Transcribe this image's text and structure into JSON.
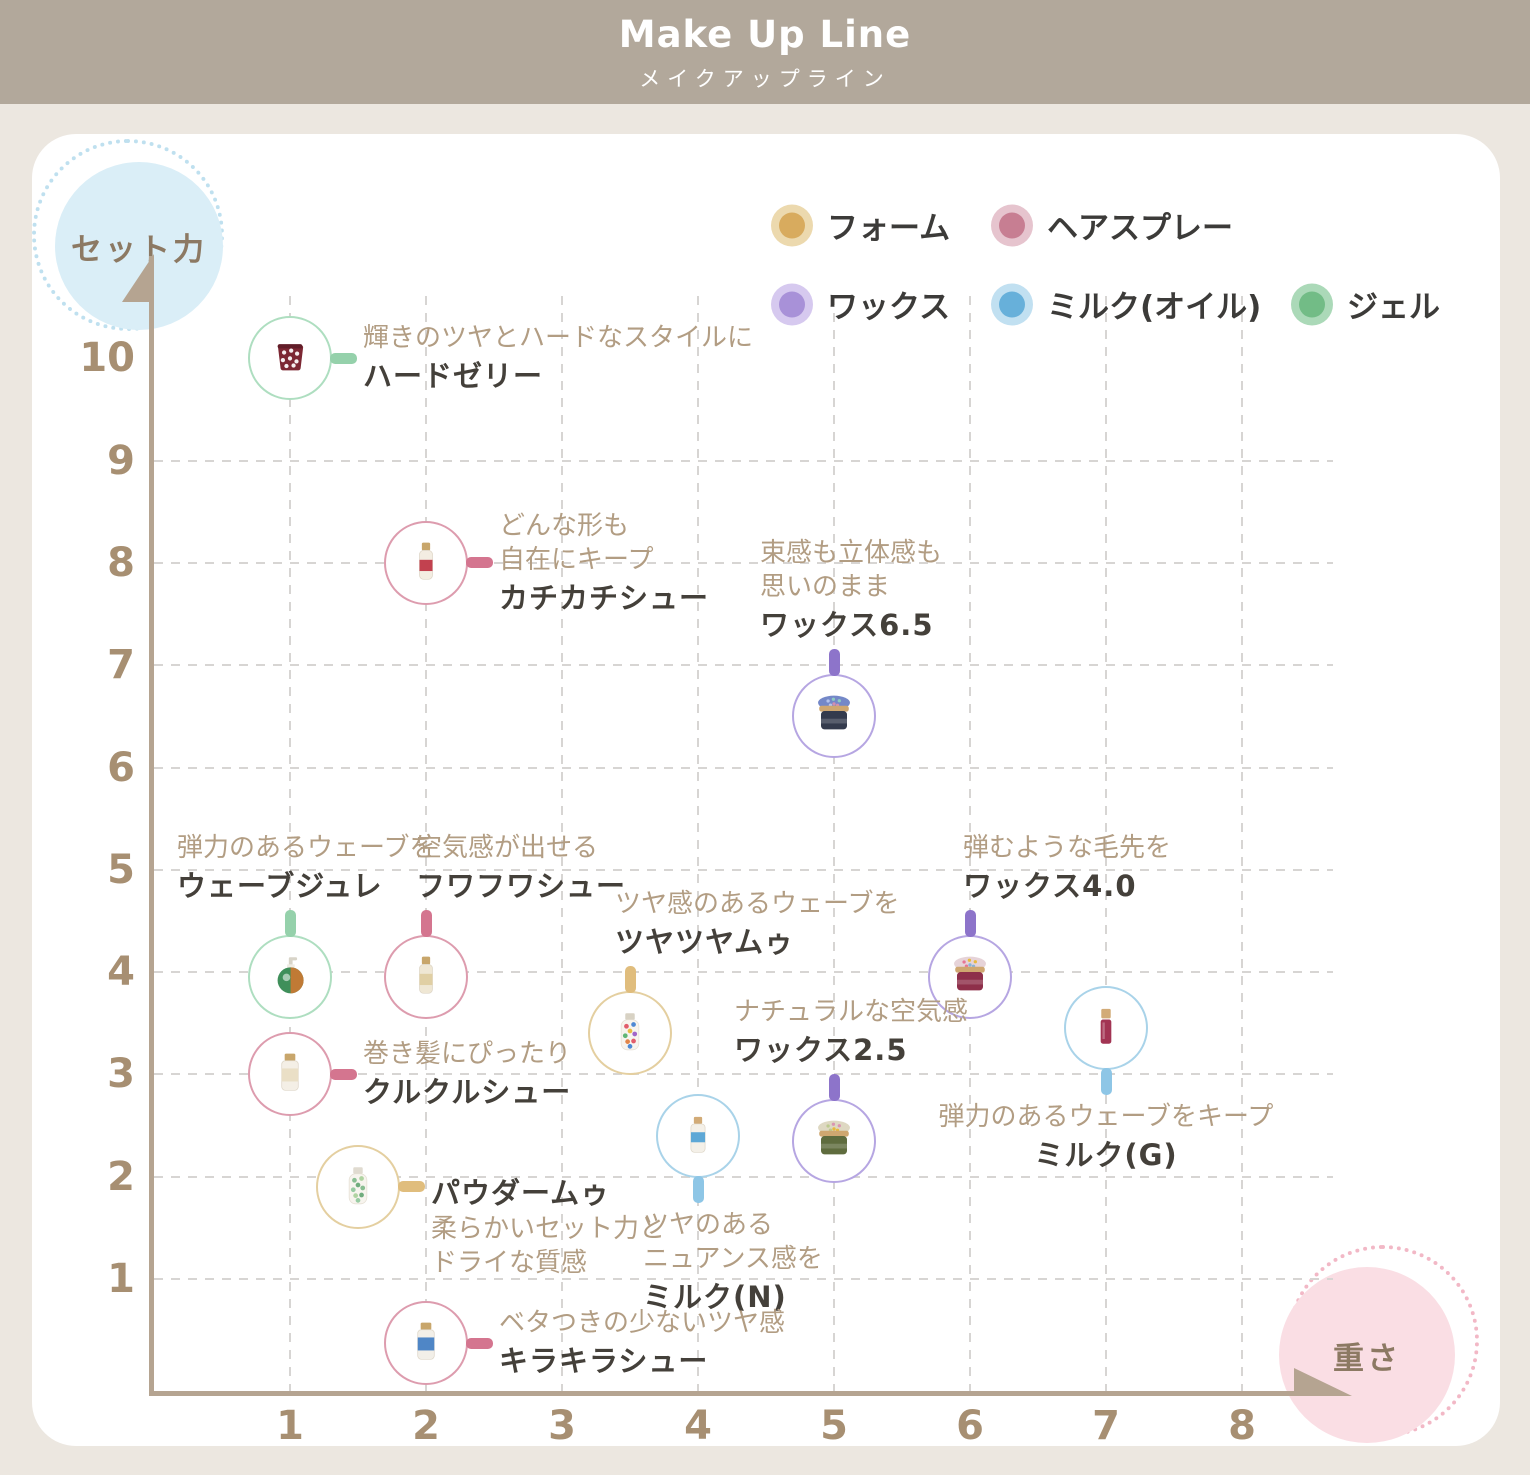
{
  "header": {
    "title": "Make Up Line",
    "subtitle": "メイクアップライン"
  },
  "axis_badges": {
    "y": "セット力",
    "x": "重さ"
  },
  "colors": {
    "header_bg": "#b2a89b",
    "page_bg": "#ece7e0",
    "card_bg": "#ffffff",
    "axis": "#b5a491",
    "tick_text": "#a78f72",
    "grid": "#d7d5d3",
    "desc_text": "#b29d83",
    "name_text": "#44403a",
    "legend_text": "#3c3b39",
    "badge_text": "#8c7963",
    "y_badge_fill": "#daeef7",
    "y_badge_dots": "#bfe0ef",
    "x_badge_fill": "#fadee4",
    "x_badge_dots": "#f2b8c6"
  },
  "categories": {
    "foam": {
      "label": "フォーム",
      "dot": "#d8ab5e",
      "halo": "#ecd9ae",
      "ring": "#e4cfa0",
      "connector": "#e0bd7d"
    },
    "spray": {
      "label": "ヘアスプレー",
      "dot": "#c77e92",
      "halo": "#e6c4ce",
      "ring": "#dd9cae",
      "connector": "#d4758f"
    },
    "wax": {
      "label": "ワックス",
      "dot": "#a891d8",
      "halo": "#d6c9ef",
      "ring": "#b6a6e2",
      "connector": "#8d74ca"
    },
    "milk": {
      "label": "ミルク(オイル)",
      "dot": "#67b0da",
      "halo": "#c1e0f1",
      "ring": "#a9d3e9",
      "connector": "#8ec6e6"
    },
    "gel": {
      "label": "ジェル",
      "dot": "#72bc86",
      "halo": "#abd9b8",
      "ring": "#aedec0",
      "connector": "#95d1ab"
    }
  },
  "legend": {
    "rows": [
      [
        "foam",
        "spray"
      ],
      [
        "wax",
        "milk",
        "gel"
      ]
    ]
  },
  "chart_data": {
    "type": "scatter",
    "title": "Make Up Line",
    "xlabel": "重さ",
    "ylabel": "セット力",
    "xlim": [
      0,
      8.7
    ],
    "ylim": [
      0,
      10.7
    ],
    "x_ticks": [
      1,
      2,
      3,
      4,
      5,
      6,
      7,
      8
    ],
    "y_ticks": [
      10,
      9,
      8,
      7,
      6,
      5,
      4,
      3,
      2,
      1
    ],
    "grid": true,
    "legend_position": "top-right",
    "products": [
      {
        "id": "hard-jelly",
        "name": "ハードゼリー",
        "desc": [
          "輝きのツヤとハードなスタイルに"
        ],
        "category": "gel",
        "x": 1,
        "y": 10,
        "label": {
          "pos": "right"
        },
        "icon": {
          "shape": "cup",
          "body": "#7c2733",
          "top": "#611d28",
          "dots": [
            "#ffffff"
          ]
        }
      },
      {
        "id": "kachikachi-shu",
        "name": "カチカチシュー",
        "desc": [
          "どんな形も",
          "自在にキープ"
        ],
        "category": "spray",
        "x": 2,
        "y": 8,
        "label": {
          "pos": "right"
        },
        "icon": {
          "shape": "spray",
          "body": "#f3ede2",
          "band": "#c2414f",
          "cap": "#c8a66b"
        }
      },
      {
        "id": "wax-6-5",
        "name": "ワックス6.5",
        "desc": [
          "束感も立体感も",
          "思いのまま"
        ],
        "category": "wax",
        "x": 5,
        "y": 6.5,
        "label": {
          "pos": "top",
          "dx": -74
        },
        "icon": {
          "shape": "jar",
          "body": "#343b4d",
          "lid": "#7488c8",
          "rim": "#cfa770",
          "speckles": [
            "#b9c8f0",
            "#d98fb0",
            "#8fd0c0"
          ]
        }
      },
      {
        "id": "wave-jure",
        "name": "ウェーブジュレ",
        "desc": [
          "弾力のあるウェーブを"
        ],
        "category": "gel",
        "x": 1,
        "y": 3.95,
        "label": {
          "pos": "top",
          "dx": -113
        },
        "icon": {
          "shape": "pump",
          "body": "#3f8f5a",
          "accent": "#c07a35",
          "cap": "#d8d4c8"
        }
      },
      {
        "id": "fuwafuwa-shu",
        "name": "フワフワシュー",
        "desc": [
          "空気感が出せる"
        ],
        "category": "spray",
        "x": 2,
        "y": 3.95,
        "label": {
          "pos": "top",
          "dx": -10
        },
        "icon": {
          "shape": "spray",
          "body": "#efe7d4",
          "band": "#e0cfa4",
          "cap": "#c8a66b"
        }
      },
      {
        "id": "tsuyatsuya-mu",
        "name": "ツヤツヤムゥ",
        "desc": [
          "ツヤ感のあるウェーブを"
        ],
        "category": "foam",
        "x": 3.5,
        "y": 3.4,
        "label": {
          "pos": "top",
          "dx": -15
        },
        "icon": {
          "shape": "bottle",
          "body": "#f7f4ee",
          "cap": "#d8d2c4",
          "dots": [
            "#e04f5f",
            "#3f7fd1",
            "#e8b633",
            "#52b06a",
            "#9958c4",
            "#e07b3a"
          ]
        }
      },
      {
        "id": "wax-4-0",
        "name": "ワックス4.0",
        "desc": [
          "弾むような毛先を"
        ],
        "category": "wax",
        "x": 6,
        "y": 3.95,
        "label": {
          "pos": "top",
          "dx": -7
        },
        "icon": {
          "shape": "jar",
          "body": "#8e2f4a",
          "lid": "#e6d3d8",
          "rim": "#cfa770",
          "speckles": [
            "#e76d8e",
            "#7fb0d8",
            "#e8b633"
          ]
        }
      },
      {
        "id": "milk-g",
        "name": "ミルク(G)",
        "desc": [
          "弾力のあるウェーブをキープ"
        ],
        "category": "milk",
        "x": 7,
        "y": 3.45,
        "label": {
          "pos": "bottom",
          "align": "center"
        },
        "icon": {
          "shape": "tube",
          "body": "#a23453",
          "cap": "#d2ab77"
        }
      },
      {
        "id": "kurukuru-shu",
        "name": "クルクルシュー",
        "desc": [
          "巻き髪にぴったり"
        ],
        "category": "spray",
        "x": 1,
        "y": 3,
        "label": {
          "pos": "right"
        },
        "icon": {
          "shape": "can",
          "body": "#f4efe6",
          "band": "#eadfc6",
          "cap": "#c8a66b"
        }
      },
      {
        "id": "wax-2-5",
        "name": "ワックス2.5",
        "desc": [
          "ナチュラルな空気感"
        ],
        "category": "wax",
        "x": 5,
        "y": 2.35,
        "label": {
          "pos": "top",
          "dx": -100
        },
        "icon": {
          "shape": "jar",
          "body": "#5f6c3e",
          "lid": "#ded8c2",
          "rim": "#cfa770",
          "speckles": [
            "#b8c98a",
            "#e8b633",
            "#d98fb0"
          ]
        }
      },
      {
        "id": "milk-n",
        "name": "ミルク(N)",
        "desc": [
          "ツヤのある",
          "ニュアンス感を"
        ],
        "category": "milk",
        "x": 4,
        "y": 2.4,
        "label": {
          "pos": "bottom",
          "dx": -55
        },
        "icon": {
          "shape": "bottle-small",
          "body": "#f4f0e8",
          "band": "#5ea8d6",
          "cap": "#d2ab77"
        }
      },
      {
        "id": "powder-mu",
        "name": "パウダームゥ",
        "desc": [
          "柔らかいセット力と",
          "ドライな質感"
        ],
        "category": "foam",
        "x": 1.5,
        "y": 1.9,
        "label": {
          "pos": "right",
          "dy": 40,
          "name_first": true
        },
        "icon": {
          "shape": "bottle",
          "body": "#f7f4ee",
          "cap": "#e0dbd0",
          "dots": [
            "#7fb98a",
            "#a8cf9a",
            "#64a573",
            "#8fc79b"
          ]
        }
      },
      {
        "id": "kirakira-shu",
        "name": "キラキラシュー",
        "desc": [
          "ベタつきの少ないツヤ感"
        ],
        "category": "spray",
        "x": 2,
        "y": 0.37,
        "label": {
          "pos": "right"
        },
        "icon": {
          "shape": "can",
          "body": "#f2efe8",
          "band": "#4f86c6",
          "cap": "#c8a66b"
        }
      }
    ]
  }
}
